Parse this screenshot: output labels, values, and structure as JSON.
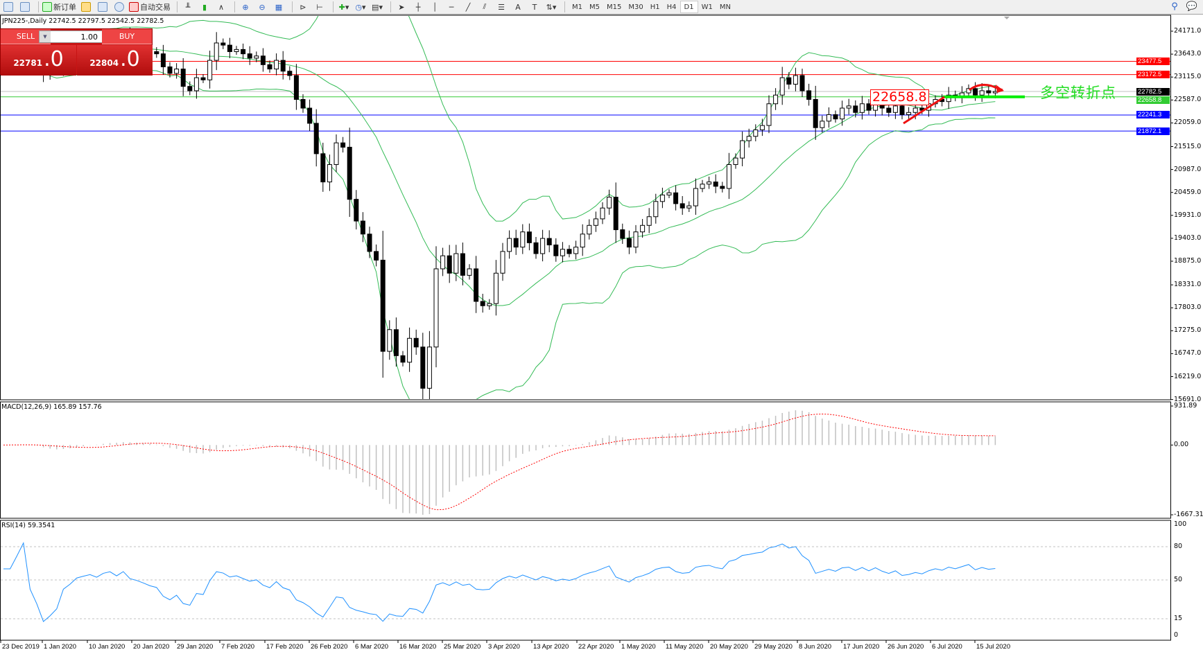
{
  "toolbar": {
    "new_order": "新订单",
    "auto_trading": "自动交易",
    "timeframes": [
      "M1",
      "M5",
      "M15",
      "M30",
      "H1",
      "H4",
      "D1",
      "W1",
      "MN"
    ],
    "active_timeframe": "D1"
  },
  "chart": {
    "title": "JPN225-,Daily  22742.5 22797.5 22542.5 22782.5",
    "symbol": "JPN225-",
    "period": "Daily"
  },
  "trade_panel": {
    "sell_label": "SELL",
    "buy_label": "BUY",
    "lot": "1.00",
    "sell_big": "22781",
    "sell_small": ".0",
    "buy_big": "22804",
    "buy_small": ".0",
    "color": "#c81414"
  },
  "annotations": {
    "box_label": "22658.8",
    "note": "多空转折点",
    "note_color": "#22dd22"
  },
  "chart_data": {
    "type": "candlestick",
    "price_axis": {
      "ticks": [
        "24171.0",
        "23643.0",
        "23115.0",
        "22587.0",
        "22059.0",
        "21515.0",
        "20987.0",
        "20459.0",
        "19931.0",
        "19403.0",
        "18875.0",
        "18331.0",
        "17803.0",
        "17275.0",
        "16747.0",
        "16219.0",
        "15691.0"
      ],
      "range": [
        15691,
        24171
      ]
    },
    "levels": [
      {
        "label": "23477.5",
        "value": 23477.5,
        "color": "#ff0000"
      },
      {
        "label": "23172.5",
        "value": 23172.5,
        "color": "#ff0000"
      },
      {
        "label": "22782.5",
        "value": 22782.5,
        "color": "#000000",
        "line": "#c0c0c0"
      },
      {
        "label": "22658.8",
        "value": 22658.8,
        "color": "#33cc33"
      },
      {
        "label": "22241.3",
        "value": 22241.3,
        "color": "#0000ff"
      },
      {
        "label": "21872.1",
        "value": 21872.1,
        "color": "#0000ff"
      }
    ],
    "dates": [
      "23 Dec 2019",
      "1 Jan 2020",
      "10 Jan 2020",
      "20 Jan 2020",
      "29 Jan 2020",
      "7 Feb 2020",
      "17 Feb 2020",
      "26 Feb 2020",
      "6 Mar 2020",
      "16 Mar 2020",
      "25 Mar 2020",
      "3 Apr 2020",
      "13 Apr 2020",
      "22 Apr 2020",
      "1 May 2020",
      "11 May 2020",
      "20 May 2020",
      "29 May 2020",
      "8 Jun 2020",
      "17 Jun 2020",
      "26 Jun 2020",
      "6 Jul 2020",
      "15 Jul 2020"
    ],
    "closes": [
      23800,
      23850,
      23830,
      23880,
      23760,
      23650,
      23200,
      23250,
      23320,
      23600,
      23700,
      23850,
      23900,
      23950,
      23880,
      24000,
      24050,
      23950,
      24080,
      23900,
      23850,
      23780,
      23700,
      23650,
      23350,
      23200,
      23300,
      22900,
      22800,
      23100,
      23050,
      23500,
      23900,
      23850,
      23700,
      23750,
      23650,
      23550,
      23600,
      23400,
      23300,
      23500,
      23250,
      23150,
      22600,
      22400,
      22050,
      21350,
      20700,
      21100,
      21600,
      21500,
      20300,
      19800,
      19500,
      19100,
      18900,
      16800,
      17300,
      16700,
      16550,
      17100,
      16900,
      15950,
      16900,
      18700,
      19000,
      18600,
      19050,
      18550,
      18700,
      17950,
      17850,
      17900,
      18600,
      19100,
      19400,
      19200,
      19550,
      19300,
      19050,
      19400,
      19250,
      19000,
      19150,
      19050,
      19200,
      19500,
      19700,
      19850,
      20100,
      20350,
      19600,
      19400,
      19200,
      19550,
      19700,
      19900,
      20250,
      20400,
      20450,
      20200,
      20100,
      20150,
      20550,
      20650,
      20700,
      20600,
      20550,
      21100,
      21250,
      21650,
      21750,
      21900,
      22000,
      22500,
      22700,
      23100,
      22950,
      23150,
      22800,
      22600,
      21950,
      22100,
      22250,
      22150,
      22400,
      22450,
      22300,
      22500,
      22350,
      22550,
      22400,
      22300,
      22450,
      22250,
      22300,
      22400,
      22350,
      22500,
      22600,
      22550,
      22700,
      22650,
      22750,
      22850,
      22700,
      22800,
      22750,
      22782.5
    ],
    "bollinger": {
      "period": 20,
      "deviations": 2,
      "color": "#33bb55"
    },
    "macd": {
      "label": "MACD(12,26,9) 165.89 157.76",
      "axis": [
        "931.89",
        "0.00",
        "-1667.31"
      ],
      "range": [
        -1667.31,
        931.89
      ],
      "histogram_color": "#c0c0c0",
      "signal_color": "#ff0000"
    },
    "rsi": {
      "label": "RSI(14) 59.3541",
      "axis": [
        "100",
        "80",
        "50",
        "15",
        "0"
      ],
      "levels": [
        80,
        50,
        15
      ],
      "color": "#1e90ff"
    }
  }
}
